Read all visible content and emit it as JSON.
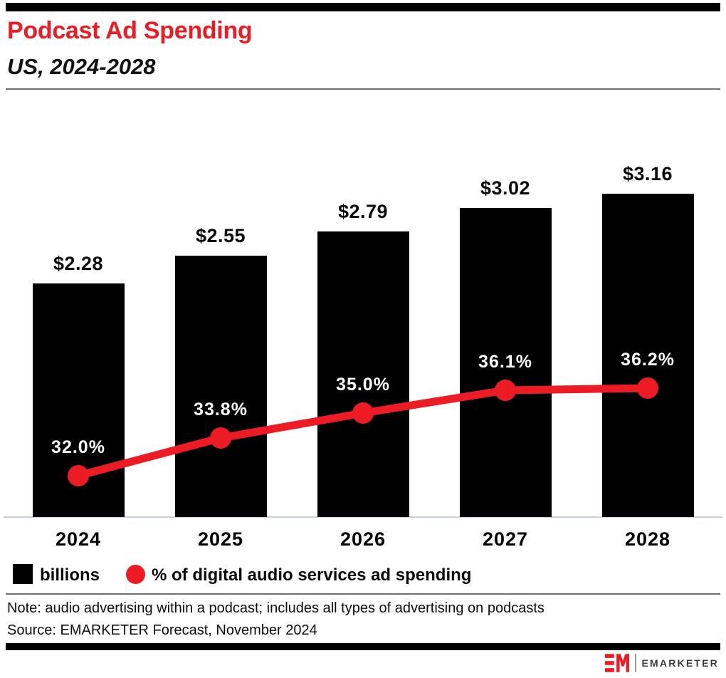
{
  "header": {
    "title": "Podcast Ad Spending",
    "subtitle": "US, 2024-2028"
  },
  "legend": {
    "bar_label": "billions",
    "line_label": "% of digital audio services ad spending"
  },
  "footnotes": {
    "note": "Note: audio advertising within a podcast; includes all types of advertising on podcasts",
    "source": "Source: EMARKETER Forecast, November 2024"
  },
  "footer": {
    "brand": "EMARKETER"
  },
  "colors": {
    "accent_red": "#ED1C24",
    "bar_black": "#000000",
    "axis_line": "#C8D0DE",
    "pct_label_text": "#FFFFFF"
  },
  "chart_data": {
    "type": "combo",
    "title": "Podcast Ad Spending",
    "subtitle": "US, 2024-2028",
    "categories": [
      "2024",
      "2025",
      "2026",
      "2027",
      "2028"
    ],
    "series": [
      {
        "name": "billions",
        "type": "bar",
        "color": "#000000",
        "units": "US$ billions",
        "values": [
          2.28,
          2.55,
          2.79,
          3.02,
          3.16
        ],
        "labels": [
          "$2.28",
          "$2.55",
          "$2.79",
          "$3.02",
          "$3.16"
        ]
      },
      {
        "name": "% of digital audio services ad spending",
        "type": "line",
        "color": "#ED1C24",
        "units": "%",
        "values": [
          32.0,
          33.8,
          35.0,
          36.1,
          36.2
        ],
        "labels": [
          "32.0%",
          "33.8%",
          "35.0%",
          "36.1%",
          "36.2%"
        ]
      }
    ],
    "layout_hints": {
      "value_labels": "above bars",
      "point_labels": "above line points, white on black bars",
      "grid": false,
      "y_axis_ticks": false,
      "legend_position": "bottom-left"
    }
  }
}
